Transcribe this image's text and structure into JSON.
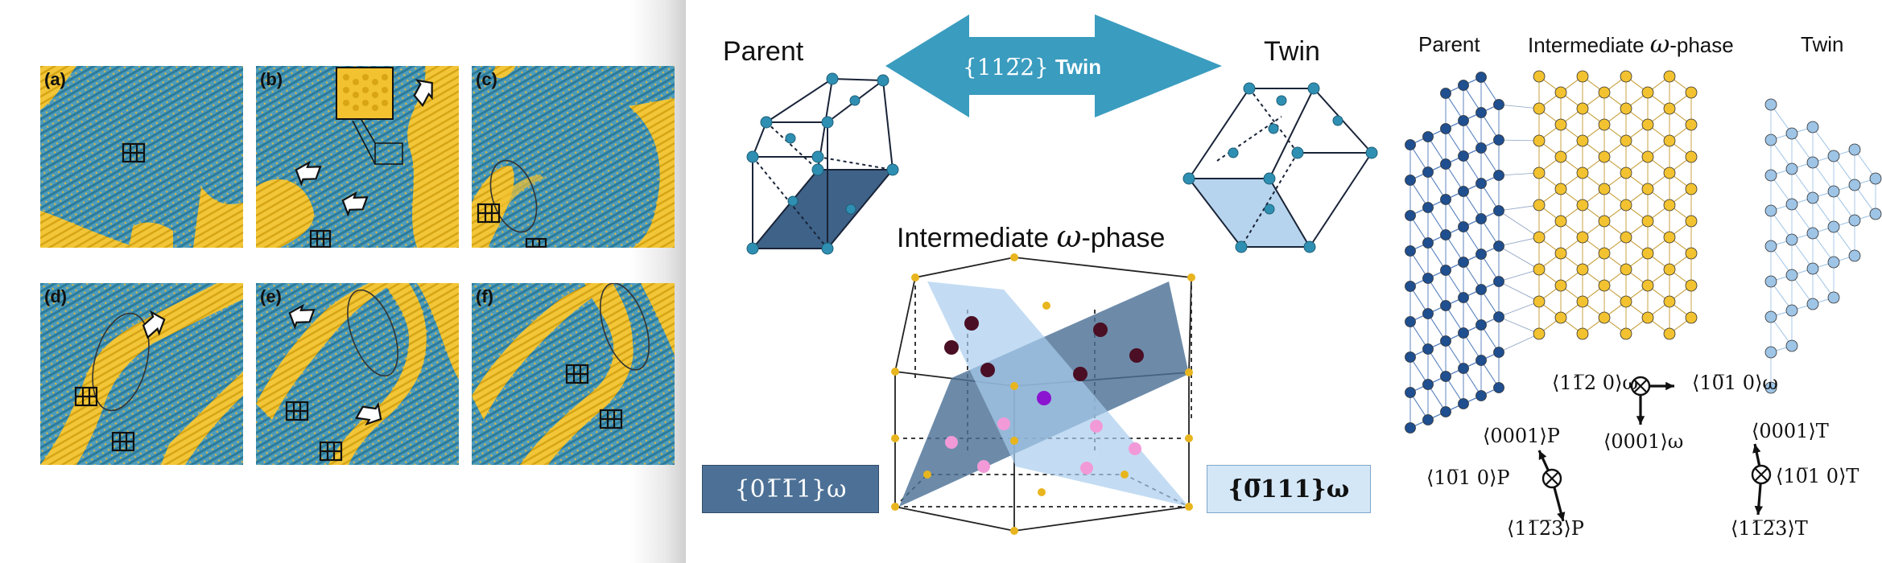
{
  "colors": {
    "teal": "#3f95b5",
    "gold": "#f2c230",
    "dark_blue": "#1f4f8f",
    "mid_blue": "#3c72b8",
    "light_blue": "#9ec4e6",
    "arrow_teal": "#3a9cbf",
    "plane_dark": "#4d7196",
    "plane_light": "#c9e1f4",
    "maroon": "#4a0f24",
    "pink": "#f29ad8",
    "purple": "#8b14d0"
  },
  "left": {
    "panels": [
      "(a)",
      "(b)",
      "(c)",
      "(d)",
      "(e)",
      "(f)"
    ]
  },
  "middle": {
    "parent_label": "Parent",
    "twin_label": "Twin",
    "twin_arrow_label": "{11Š2} Twin",
    "twin_arrow_math": "{11",
    "twin_arrow_math_bar": "2̅",
    "twin_arrow_suffix": "2}",
    "twin_arrow_word": "Twin",
    "omega_title_prefix": "Intermediate ",
    "omega_symbol": "ω",
    "omega_title_suffix": "-phase",
    "plane_left": "{01̅1̅1}ω",
    "plane_right": "{0̅111}ω"
  },
  "right": {
    "label_parent": "Parent",
    "label_mid_prefix": "Intermediate ",
    "label_mid_omega": "ω",
    "label_mid_suffix": "-phase",
    "label_twin": "Twin",
    "dir_omega_h": "⟨11̅2 0⟩ω",
    "dir_omega_r": "⟨10̅1 0⟩ω",
    "dir_omega_v": "⟨0001⟩ω",
    "dir_p_up": "⟨0001⟩P",
    "dir_p_left": "⟨10̅1 0⟩P",
    "dir_p_down": "⟨11̅2̅3⟩P",
    "dir_t_up": "⟨0001⟩T",
    "dir_t_right": "⟨10̅1 0⟩T",
    "dir_t_down": "⟨11̅2̅3⟩T"
  }
}
